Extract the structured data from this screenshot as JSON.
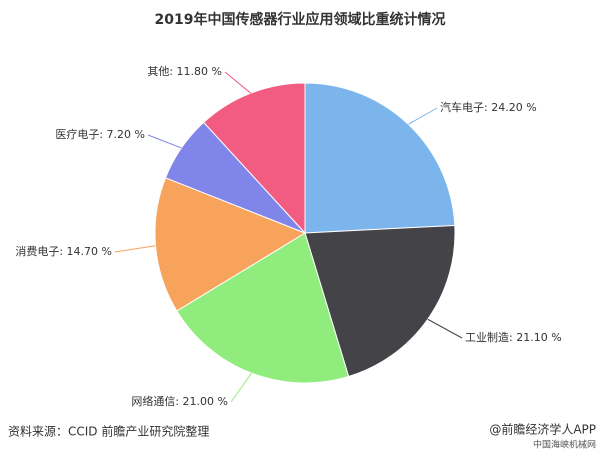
{
  "chart_data": {
    "type": "pie",
    "title": "2019年中国传感器行业应用领域比重统计情况",
    "values": [
      24.2,
      21.1,
      21.0,
      14.7,
      7.2,
      11.8
    ],
    "value_labels": [
      "汽车电子: 24.20 %",
      "工业制造: 21.10 %",
      "网络通信: 21.00 %",
      "消费电子: 14.70 %",
      "医疗电子: 7.20 %",
      "其他: 11.80 %"
    ],
    "colors": [
      "#7cb5ec",
      "#434348",
      "#90ed7d",
      "#f7a35c",
      "#8085e9",
      "#f15c80"
    ]
  },
  "footer": {
    "source": "资料来源：CCID 前瞻产业研究院整理",
    "brand": "@前瞻经济学人APP",
    "site": "中国海峡机械网"
  }
}
